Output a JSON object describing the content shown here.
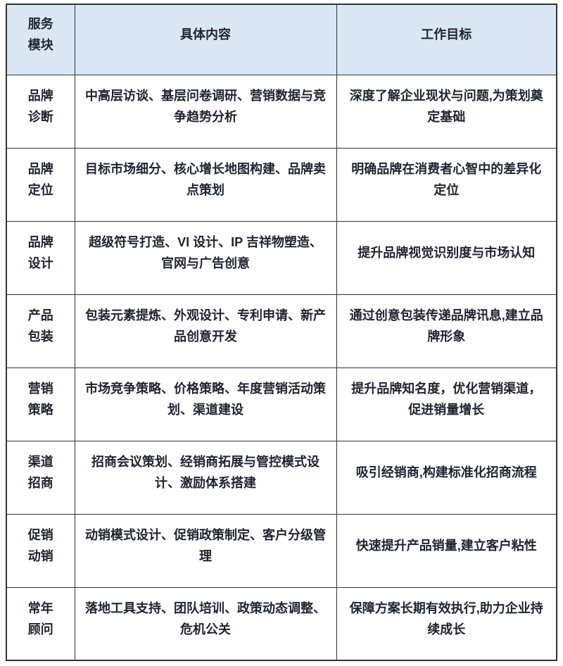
{
  "table": {
    "colors": {
      "header_bg": "#d9e7f5",
      "border": "#333333",
      "text": "#1e2430",
      "page_bg": "#ffffff"
    },
    "headers": {
      "module": "服务\n模块",
      "content": "具体内容",
      "goal": "工作目标"
    },
    "rows": [
      {
        "module": "品牌\n诊断",
        "content": "中高层访谈、基层问卷调研、营销数据与竞争趋势分析",
        "goal": "深度了解企业现状与问题,为策划奠定基础"
      },
      {
        "module": "品牌\n定位",
        "content": "目标市场细分、核心增长地图构建、品牌卖点策划",
        "goal": "明确品牌在消费者心智中的差异化定位"
      },
      {
        "module": "品牌\n设计",
        "content": "超级符号打造、VI 设计、IP 吉祥物塑造、官网与广告创意",
        "goal": "提升品牌视觉识别度与市场认知"
      },
      {
        "module": "产品\n包装",
        "content": "包装元素提炼、外观设计、专利申请、新产品创意开发",
        "goal": "通过创意包装传递品牌讯息,建立品牌形象"
      },
      {
        "module": "营销\n策略",
        "content": "市场竞争策略、价格策略、年度营销活动策划、渠道建设",
        "goal": "提升品牌知名度，优化营销渠道，促进销量增长"
      },
      {
        "module": "渠道\n招商",
        "content": "招商会议策划、经销商拓展与管控模式设计、激励体系搭建",
        "goal": "吸引经销商,构建标准化招商流程"
      },
      {
        "module": "促销\n动销",
        "content": "动销模式设计、促销政策制定、客户分级管理",
        "goal": "快速提升产品销量,建立客户粘性"
      },
      {
        "module": "常年\n顾问",
        "content": "落地工具支持、团队培训、政策动态调整、危机公关",
        "goal": "保障方案长期有效执行,助力企业持续成长"
      }
    ]
  }
}
